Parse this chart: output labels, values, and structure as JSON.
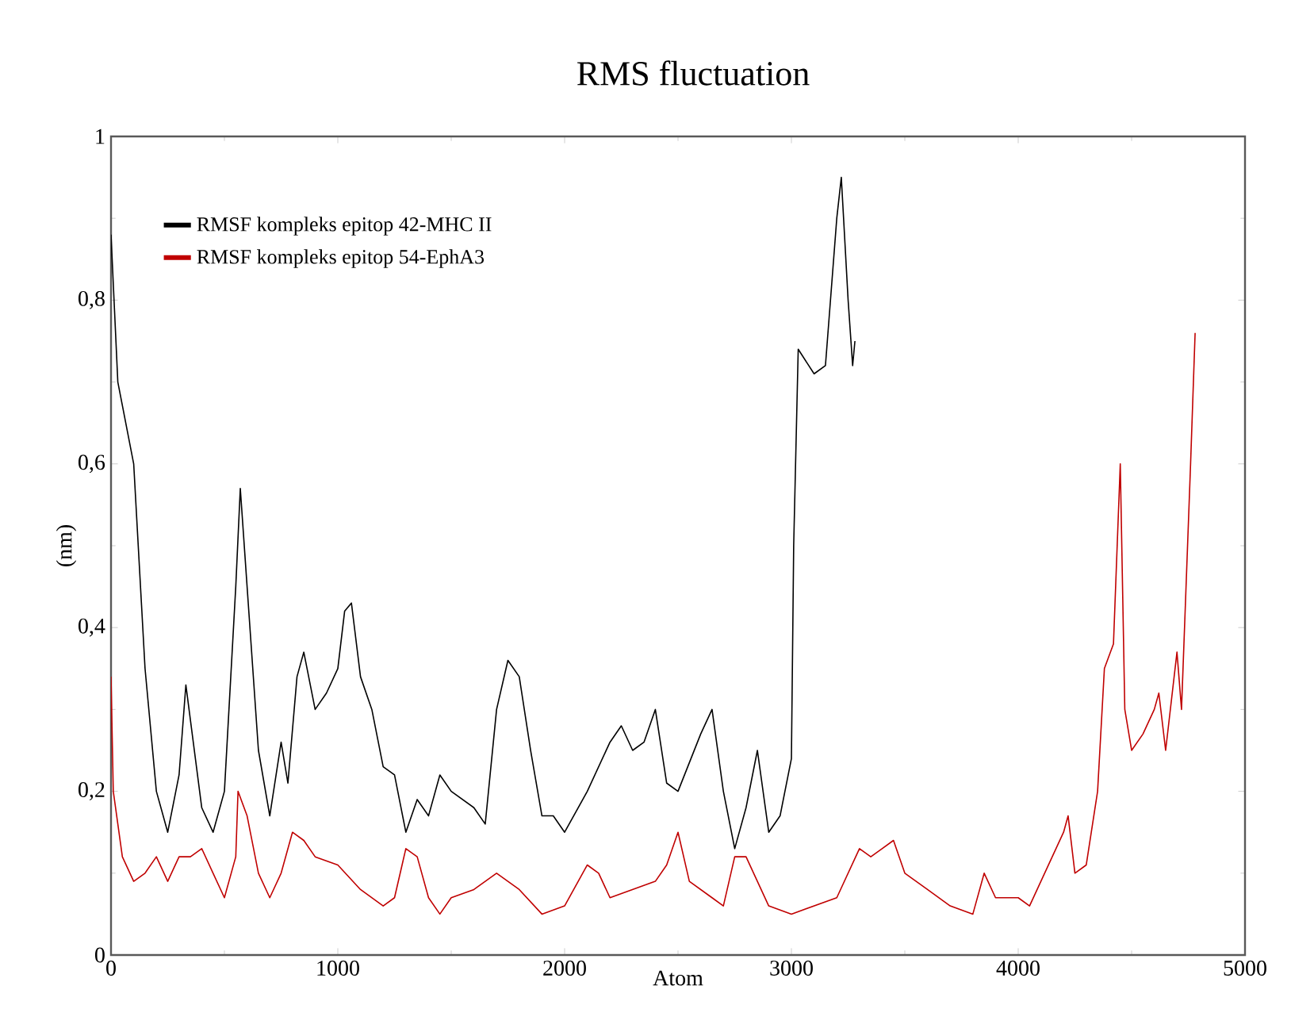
{
  "chart_data": {
    "type": "line",
    "title": "RMS fluctuation",
    "xlabel": "Atom",
    "ylabel": "(nm)",
    "xlim": [
      0,
      5000
    ],
    "ylim": [
      0,
      1
    ],
    "xticks": [
      0,
      1000,
      2000,
      3000,
      4000,
      5000
    ],
    "yticks": [
      0,
      {
        "value": 0.2,
        "label": "0,2"
      },
      {
        "value": 0.4,
        "label": "0,4"
      },
      {
        "value": 0.6,
        "label": "0,6"
      },
      {
        "value": 0.8,
        "label": "0,8"
      },
      1
    ],
    "legend": "top left",
    "grid": false,
    "marker": "none",
    "line_style": "solid",
    "series": [
      {
        "name": "RMSF kompleks epitop 42-MHC II",
        "color": "#000000",
        "x": [
          0,
          30,
          100,
          150,
          200,
          250,
          300,
          330,
          400,
          450,
          500,
          550,
          570,
          600,
          650,
          700,
          750,
          780,
          820,
          850,
          900,
          950,
          1000,
          1030,
          1060,
          1100,
          1150,
          1200,
          1250,
          1300,
          1350,
          1400,
          1450,
          1500,
          1600,
          1650,
          1700,
          1750,
          1800,
          1850,
          1900,
          1950,
          2000,
          2100,
          2200,
          2250,
          2300,
          2350,
          2400,
          2450,
          2500,
          2600,
          2650,
          2700,
          2750,
          2800,
          2850,
          2900,
          2950,
          3000,
          3010,
          3030,
          3100,
          3150,
          3200,
          3220,
          3250,
          3270,
          3280
        ],
        "values": [
          0.88,
          0.7,
          0.6,
          0.35,
          0.2,
          0.15,
          0.22,
          0.33,
          0.18,
          0.15,
          0.2,
          0.45,
          0.57,
          0.45,
          0.25,
          0.17,
          0.26,
          0.21,
          0.34,
          0.37,
          0.3,
          0.32,
          0.35,
          0.42,
          0.43,
          0.34,
          0.3,
          0.23,
          0.22,
          0.15,
          0.19,
          0.17,
          0.22,
          0.2,
          0.18,
          0.16,
          0.3,
          0.36,
          0.34,
          0.25,
          0.17,
          0.17,
          0.15,
          0.2,
          0.26,
          0.28,
          0.25,
          0.26,
          0.3,
          0.21,
          0.2,
          0.27,
          0.3,
          0.2,
          0.13,
          0.18,
          0.25,
          0.15,
          0.17,
          0.24,
          0.5,
          0.74,
          0.71,
          0.72,
          0.9,
          0.95,
          0.8,
          0.72,
          0.75
        ]
      },
      {
        "name": "RMSF kompleks epitop 54-EphA3",
        "color": "#c00000",
        "x": [
          0,
          10,
          50,
          100,
          150,
          200,
          250,
          300,
          350,
          400,
          450,
          500,
          550,
          560,
          600,
          650,
          700,
          750,
          800,
          850,
          900,
          1000,
          1100,
          1200,
          1250,
          1300,
          1350,
          1400,
          1450,
          1500,
          1600,
          1700,
          1800,
          1900,
          2000,
          2100,
          2150,
          2200,
          2300,
          2400,
          2450,
          2500,
          2550,
          2650,
          2700,
          2750,
          2800,
          2900,
          3000,
          3100,
          3200,
          3300,
          3350,
          3400,
          3450,
          3500,
          3600,
          3700,
          3800,
          3850,
          3900,
          4000,
          4050,
          4100,
          4200,
          4220,
          4250,
          4300,
          4350,
          4380,
          4420,
          4450,
          4470,
          4500,
          4550,
          4600,
          4620,
          4650,
          4700,
          4720,
          4760,
          4780
        ],
        "values": [
          0.34,
          0.2,
          0.12,
          0.09,
          0.1,
          0.12,
          0.09,
          0.12,
          0.12,
          0.13,
          0.1,
          0.07,
          0.12,
          0.2,
          0.17,
          0.1,
          0.07,
          0.1,
          0.15,
          0.14,
          0.12,
          0.11,
          0.08,
          0.06,
          0.07,
          0.13,
          0.12,
          0.07,
          0.05,
          0.07,
          0.08,
          0.1,
          0.08,
          0.05,
          0.06,
          0.11,
          0.1,
          0.07,
          0.08,
          0.09,
          0.11,
          0.15,
          0.09,
          0.07,
          0.06,
          0.12,
          0.12,
          0.06,
          0.05,
          0.06,
          0.07,
          0.13,
          0.12,
          0.13,
          0.14,
          0.1,
          0.08,
          0.06,
          0.05,
          0.1,
          0.07,
          0.07,
          0.06,
          0.09,
          0.15,
          0.17,
          0.1,
          0.11,
          0.2,
          0.35,
          0.38,
          0.6,
          0.3,
          0.25,
          0.27,
          0.3,
          0.32,
          0.25,
          0.37,
          0.3,
          0.6,
          0.76
        ]
      }
    ]
  }
}
